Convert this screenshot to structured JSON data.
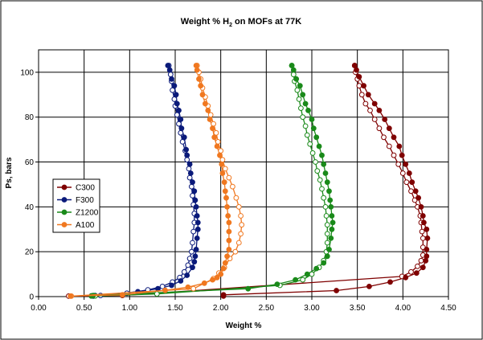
{
  "chart_data": {
    "type": "line",
    "title_main": "Weight % H",
    "title_sub": "2",
    "title_rest": " on MOFs at 77K",
    "xlabel": "Weight %",
    "ylabel": "Ps, bars",
    "xlim": [
      0,
      4.5
    ],
    "ylim": [
      0,
      110
    ],
    "xticks": [
      "0.00",
      "0.50",
      "1.00",
      "1.50",
      "2.00",
      "2.50",
      "3.00",
      "3.50",
      "4.00",
      "4.50"
    ],
    "yticks": [
      "0",
      "20",
      "40",
      "60",
      "80",
      "100"
    ],
    "grid": true,
    "legend_position": "left",
    "series": [
      {
        "name": "C300",
        "color": "#7f0000",
        "adsorption": [
          [
            2.03,
            0.2
          ],
          [
            2.03,
            0.8
          ],
          [
            3.27,
            2.7
          ],
          [
            3.63,
            4.5
          ],
          [
            3.86,
            6.5
          ],
          [
            4.03,
            8.5
          ],
          [
            4.15,
            10.5
          ],
          [
            4.22,
            13
          ],
          [
            4.25,
            16
          ],
          [
            4.26,
            18
          ],
          [
            4.26,
            21
          ],
          [
            4.27,
            26
          ],
          [
            4.26,
            30
          ],
          [
            4.23,
            33
          ],
          [
            4.22,
            36
          ],
          [
            4.2,
            40
          ],
          [
            4.17,
            44
          ],
          [
            4.14,
            47
          ],
          [
            4.1,
            51
          ],
          [
            4.07,
            55
          ],
          [
            4.03,
            59
          ],
          [
            3.99,
            63
          ],
          [
            3.96,
            67
          ],
          [
            3.9,
            71
          ],
          [
            3.85,
            75
          ],
          [
            3.8,
            79
          ],
          [
            3.74,
            83
          ],
          [
            3.69,
            86
          ],
          [
            3.62,
            90
          ],
          [
            3.57,
            94
          ],
          [
            3.52,
            98
          ],
          [
            3.49,
            101
          ],
          [
            3.47,
            103
          ]
        ],
        "desorption": [
          [
            0.33,
            0.2
          ],
          [
            0.92,
            0.5
          ],
          [
            3.99,
            9
          ],
          [
            4.09,
            11
          ],
          [
            4.16,
            13.5
          ],
          [
            4.2,
            16
          ],
          [
            4.22,
            18.5
          ],
          [
            4.22,
            22
          ],
          [
            4.22,
            26
          ],
          [
            4.21,
            29
          ],
          [
            4.2,
            33
          ],
          [
            4.19,
            36
          ],
          [
            4.16,
            40
          ],
          [
            4.13,
            43
          ],
          [
            4.09,
            47
          ],
          [
            4.04,
            51
          ],
          [
            4.0,
            55
          ],
          [
            3.95,
            59
          ],
          [
            3.9,
            63
          ],
          [
            3.85,
            67
          ],
          [
            3.79,
            71
          ],
          [
            3.74,
            75
          ],
          [
            3.69,
            79
          ],
          [
            3.64,
            83
          ],
          [
            3.59,
            86
          ],
          [
            3.55,
            90
          ],
          [
            3.52,
            94
          ],
          [
            3.5,
            97
          ],
          [
            3.48,
            100
          ],
          [
            3.47,
            103
          ]
        ]
      },
      {
        "name": "F300",
        "color": "#0a1a7a",
        "adsorption": [
          [
            0.6,
            0.2
          ],
          [
            0.62,
            0.5
          ],
          [
            1.09,
            2.2
          ],
          [
            1.31,
            3.5
          ],
          [
            1.46,
            5
          ],
          [
            1.56,
            7
          ],
          [
            1.63,
            9.5
          ],
          [
            1.69,
            13
          ],
          [
            1.71,
            15.5
          ],
          [
            1.72,
            18
          ],
          [
            1.73,
            21
          ],
          [
            1.74,
            26
          ],
          [
            1.75,
            30
          ],
          [
            1.75,
            33
          ],
          [
            1.74,
            36
          ],
          [
            1.73,
            40
          ],
          [
            1.72,
            43
          ],
          [
            1.71,
            47
          ],
          [
            1.69,
            51
          ],
          [
            1.67,
            55
          ],
          [
            1.66,
            59
          ],
          [
            1.63,
            63
          ],
          [
            1.62,
            65.5
          ],
          [
            1.6,
            71
          ],
          [
            1.57,
            75
          ],
          [
            1.56,
            79
          ],
          [
            1.54,
            83
          ],
          [
            1.52,
            86
          ],
          [
            1.51,
            90
          ],
          [
            1.49,
            94
          ],
          [
            1.46,
            97
          ],
          [
            1.44,
            101
          ],
          [
            1.42,
            103
          ]
        ],
        "desorption": [
          [
            0.58,
            0.3
          ],
          [
            0.68,
            0.5
          ],
          [
            0.97,
            1.5
          ],
          [
            1.2,
            3
          ],
          [
            1.36,
            4.5
          ],
          [
            1.47,
            6.5
          ],
          [
            1.55,
            8.5
          ],
          [
            1.6,
            11
          ],
          [
            1.64,
            14
          ],
          [
            1.66,
            17
          ],
          [
            1.68,
            20
          ],
          [
            1.69,
            24
          ],
          [
            1.7,
            29
          ],
          [
            1.71,
            33
          ],
          [
            1.71,
            37
          ],
          [
            1.7,
            41
          ],
          [
            1.69,
            45
          ],
          [
            1.68,
            49
          ],
          [
            1.66,
            53
          ],
          [
            1.65,
            57
          ],
          [
            1.63,
            61
          ],
          [
            1.61,
            65
          ],
          [
            1.58,
            69
          ],
          [
            1.56,
            73
          ],
          [
            1.54,
            77
          ],
          [
            1.52,
            81
          ],
          [
            1.5,
            85
          ],
          [
            1.49,
            88
          ],
          [
            1.47,
            92
          ],
          [
            1.46,
            96
          ],
          [
            1.45,
            99
          ],
          [
            1.43,
            103
          ]
        ]
      },
      {
        "name": "Z1200",
        "color": "#1a8a1a",
        "adsorption": [
          [
            0.58,
            0.3
          ],
          [
            0.6,
            0.5
          ],
          [
            2.3,
            3.5
          ],
          [
            2.62,
            5.5
          ],
          [
            2.82,
            7.5
          ],
          [
            2.95,
            10
          ],
          [
            3.05,
            12.5
          ],
          [
            3.13,
            15
          ],
          [
            3.17,
            18
          ],
          [
            3.19,
            21
          ],
          [
            3.21,
            26
          ],
          [
            3.22,
            30
          ],
          [
            3.23,
            33
          ],
          [
            3.22,
            36
          ],
          [
            3.21,
            40
          ],
          [
            3.2,
            43
          ],
          [
            3.19,
            47
          ],
          [
            3.17,
            51
          ],
          [
            3.15,
            55
          ],
          [
            3.13,
            59
          ],
          [
            3.11,
            63
          ],
          [
            3.08,
            67
          ],
          [
            3.05,
            71
          ],
          [
            3.02,
            75
          ],
          [
            3.0,
            79
          ],
          [
            2.96,
            83
          ],
          [
            2.93,
            86
          ],
          [
            2.9,
            90
          ],
          [
            2.87,
            94
          ],
          [
            2.83,
            97
          ],
          [
            2.8,
            101
          ],
          [
            2.78,
            103
          ]
        ],
        "desorption": [
          [
            0.62,
            0.3
          ],
          [
            1.3,
            1.2
          ],
          [
            2.65,
            5
          ],
          [
            2.9,
            7.5
          ],
          [
            3.0,
            10
          ],
          [
            3.08,
            13
          ],
          [
            3.13,
            16
          ],
          [
            3.16,
            20
          ],
          [
            3.17,
            24
          ],
          [
            3.17,
            28
          ],
          [
            3.17,
            32
          ],
          [
            3.16,
            36
          ],
          [
            3.15,
            40
          ],
          [
            3.13,
            44
          ],
          [
            3.11,
            48
          ],
          [
            3.09,
            52
          ],
          [
            3.06,
            56
          ],
          [
            3.04,
            60
          ],
          [
            3.01,
            64
          ],
          [
            2.98,
            68
          ],
          [
            2.95,
            72
          ],
          [
            2.93,
            76
          ],
          [
            2.9,
            80
          ],
          [
            2.88,
            84
          ],
          [
            2.86,
            88
          ],
          [
            2.84,
            92
          ],
          [
            2.81,
            96
          ],
          [
            2.8,
            99
          ],
          [
            2.78,
            103
          ]
        ]
      },
      {
        "name": "A100",
        "color": "#f07820",
        "adsorption": [
          [
            0.35,
            0.2
          ],
          [
            0.92,
            0.8
          ],
          [
            1.39,
            2.8
          ],
          [
            1.64,
            4.2
          ],
          [
            1.82,
            6
          ],
          [
            1.91,
            7.5
          ],
          [
            1.96,
            8.5
          ],
          [
            2.0,
            10
          ],
          [
            2.03,
            12.5
          ],
          [
            2.05,
            15
          ],
          [
            2.07,
            18
          ],
          [
            2.09,
            21
          ],
          [
            2.09,
            25
          ],
          [
            2.09,
            29
          ],
          [
            2.09,
            33
          ],
          [
            2.08,
            36
          ],
          [
            2.07,
            40
          ],
          [
            2.06,
            44
          ],
          [
            2.05,
            47
          ],
          [
            2.04,
            51
          ],
          [
            2.02,
            55
          ],
          [
            2.01,
            59
          ],
          [
            1.99,
            63
          ],
          [
            1.96,
            67
          ],
          [
            1.93,
            71
          ],
          [
            1.91,
            75
          ],
          [
            1.88,
            79
          ],
          [
            1.86,
            83
          ],
          [
            1.83,
            86
          ],
          [
            1.8,
            90
          ],
          [
            1.78,
            94
          ],
          [
            1.76,
            97
          ],
          [
            1.74,
            101
          ],
          [
            1.73,
            103
          ]
        ],
        "desorption": [
          [
            0.36,
            0.2
          ],
          [
            1.7,
            3.5
          ],
          [
            1.92,
            8
          ],
          [
            1.98,
            10.5
          ],
          [
            2.04,
            13
          ],
          [
            2.1,
            17
          ],
          [
            2.16,
            20
          ],
          [
            2.2,
            24
          ],
          [
            2.22,
            28
          ],
          [
            2.23,
            32
          ],
          [
            2.22,
            36
          ],
          [
            2.2,
            40
          ],
          [
            2.17,
            44
          ],
          [
            2.13,
            49
          ],
          [
            2.09,
            53
          ],
          [
            2.05,
            57
          ],
          [
            2.02,
            61
          ],
          [
            2.0,
            65
          ],
          [
            1.97,
            69
          ],
          [
            1.95,
            73
          ],
          [
            1.92,
            77
          ],
          [
            1.89,
            81
          ],
          [
            1.86,
            85
          ],
          [
            1.83,
            89
          ],
          [
            1.8,
            93
          ],
          [
            1.78,
            97
          ],
          [
            1.76,
            100
          ],
          [
            1.74,
            103
          ]
        ]
      }
    ]
  }
}
